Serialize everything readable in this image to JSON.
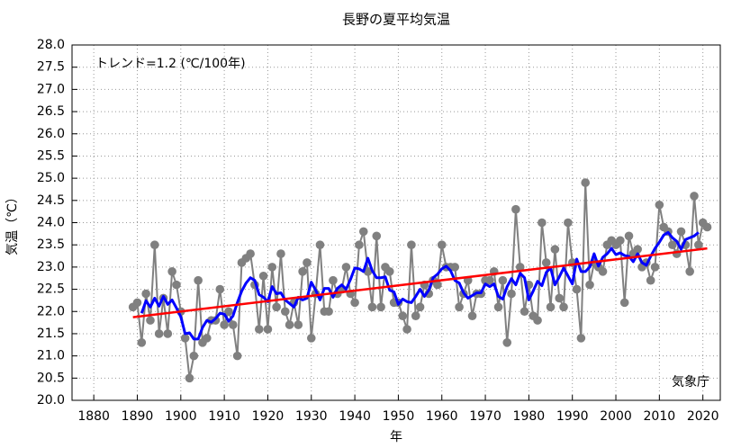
{
  "chart_data": {
    "type": "line",
    "title": "長野の夏平均気温",
    "xlabel": "年",
    "ylabel": "気温（℃）",
    "annotations": [
      "トレンド=1.2 (℃/100年)",
      "気象庁"
    ],
    "xlim": [
      1875,
      2024
    ],
    "ylim": [
      20,
      28
    ],
    "xticks": [
      1880,
      1890,
      1900,
      1910,
      1920,
      1930,
      1940,
      1950,
      1960,
      1970,
      1980,
      1990,
      2000,
      2010,
      2020
    ],
    "yticks": [
      {
        "value": 20,
        "label": "20.0"
      },
      {
        "value": 20.5,
        "label": "20.5"
      },
      {
        "value": 21,
        "label": "21.0"
      },
      {
        "value": 21.5,
        "label": "21.5"
      },
      {
        "value": 22,
        "label": "22.0"
      },
      {
        "value": 22.5,
        "label": "22.5"
      },
      {
        "value": 23,
        "label": "23.0"
      },
      {
        "value": 23.5,
        "label": "23.5"
      },
      {
        "value": 24,
        "label": "24.0"
      },
      {
        "value": 24.5,
        "label": "24.5"
      },
      {
        "value": 25,
        "label": "25.0"
      },
      {
        "value": 25.5,
        "label": "25.5"
      },
      {
        "value": 26,
        "label": "26.0"
      },
      {
        "value": 26.5,
        "label": "26.5"
      },
      {
        "value": 27,
        "label": "27.0"
      },
      {
        "value": 27.5,
        "label": "27.5"
      },
      {
        "value": 28,
        "label": "28.0"
      }
    ],
    "grid": true,
    "series": [
      {
        "color": "#808080",
        "marker": true,
        "width": 2,
        "x": [
          1889,
          1890,
          1891,
          1892,
          1893,
          1894,
          1895,
          1896,
          1897,
          1898,
          1899,
          1900,
          1901,
          1902,
          1903,
          1904,
          1905,
          1906,
          1907,
          1908,
          1909,
          1910,
          1911,
          1912,
          1913,
          1914,
          1915,
          1916,
          1917,
          1918,
          1919,
          1920,
          1921,
          1922,
          1923,
          1924,
          1925,
          1926,
          1927,
          1928,
          1929,
          1930,
          1931,
          1932,
          1933,
          1934,
          1935,
          1936,
          1937,
          1938,
          1939,
          1940,
          1941,
          1942,
          1943,
          1944,
          1945,
          1946,
          1947,
          1948,
          1949,
          1950,
          1951,
          1952,
          1953,
          1954,
          1955,
          1956,
          1957,
          1958,
          1959,
          1960,
          1961,
          1962,
          1963,
          1964,
          1965,
          1966,
          1967,
          1968,
          1969,
          1970,
          1971,
          1972,
          1973,
          1974,
          1975,
          1976,
          1977,
          1978,
          1979,
          1980,
          1981,
          1982,
          1983,
          1984,
          1985,
          1986,
          1987,
          1988,
          1989,
          1990,
          1991,
          1992,
          1993,
          1994,
          1995,
          1996,
          1997,
          1998,
          1999,
          2000,
          2001,
          2002,
          2003,
          2004,
          2005,
          2006,
          2007,
          2008,
          2009,
          2010,
          2011,
          2012,
          2013,
          2014,
          2015,
          2016,
          2017,
          2018,
          2019,
          2020,
          2021
        ],
        "values": [
          22.1,
          22.2,
          21.3,
          22.4,
          21.8,
          23.5,
          21.5,
          22.3,
          21.5,
          22.9,
          22.6,
          22.0,
          21.4,
          20.5,
          21.0,
          22.7,
          21.3,
          21.4,
          21.8,
          21.8,
          22.5,
          21.7,
          22.0,
          21.7,
          21.0,
          23.1,
          23.2,
          23.3,
          22.6,
          21.6,
          22.8,
          21.6,
          23.0,
          22.1,
          23.3,
          22.0,
          21.7,
          22.2,
          21.7,
          22.9,
          23.1,
          21.4,
          22.4,
          23.5,
          22.0,
          22.0,
          22.7,
          22.4,
          22.5,
          23.0,
          22.4,
          22.2,
          23.5,
          23.8,
          22.9,
          22.1,
          23.7,
          22.1,
          23.0,
          22.9,
          22.2,
          22.2,
          21.9,
          21.6,
          23.5,
          21.9,
          22.1,
          22.6,
          22.4,
          22.7,
          22.6,
          23.5,
          23.0,
          23.0,
          23.0,
          22.1,
          22.4,
          22.7,
          21.9,
          22.4,
          22.4,
          22.7,
          22.7,
          22.9,
          22.1,
          22.7,
          21.3,
          22.4,
          24.3,
          23.0,
          22.0,
          22.6,
          21.9,
          21.8,
          24.0,
          23.1,
          22.1,
          23.4,
          22.3,
          22.1,
          24.0,
          23.1,
          22.5,
          21.4,
          24.9,
          22.6,
          23.1,
          23.0,
          22.9,
          23.5,
          23.6,
          23.5,
          23.6,
          22.2,
          23.7,
          23.3,
          23.4,
          23.0,
          23.1,
          22.7,
          23.0,
          24.4,
          23.9,
          23.8,
          23.5,
          23.3,
          23.8,
          23.5,
          22.9,
          24.6,
          23.5,
          24.0,
          23.9
        ]
      },
      {
        "color": "#0000ff",
        "marker": false,
        "width": 3,
        "x": [
          1891,
          1892,
          1893,
          1894,
          1895,
          1896,
          1897,
          1898,
          1899,
          1900,
          1901,
          1902,
          1903,
          1904,
          1905,
          1906,
          1907,
          1908,
          1909,
          1910,
          1911,
          1912,
          1913,
          1914,
          1915,
          1916,
          1917,
          1918,
          1919,
          1920,
          1921,
          1922,
          1923,
          1924,
          1925,
          1926,
          1927,
          1928,
          1929,
          1930,
          1931,
          1932,
          1933,
          1934,
          1935,
          1936,
          1937,
          1938,
          1939,
          1940,
          1941,
          1942,
          1943,
          1944,
          1945,
          1946,
          1947,
          1948,
          1949,
          1950,
          1951,
          1952,
          1953,
          1954,
          1955,
          1956,
          1957,
          1958,
          1959,
          1960,
          1961,
          1962,
          1963,
          1964,
          1965,
          1966,
          1967,
          1968,
          1969,
          1970,
          1971,
          1972,
          1973,
          1974,
          1975,
          1976,
          1977,
          1978,
          1979,
          1980,
          1981,
          1982,
          1983,
          1984,
          1985,
          1986,
          1987,
          1988,
          1989,
          1990,
          1991,
          1992,
          1993,
          1994,
          1995,
          1996,
          1997,
          1998,
          1999,
          2000,
          2001,
          2002,
          2003,
          2004,
          2005,
          2006,
          2007,
          2008,
          2009,
          2010,
          2011,
          2012,
          2013,
          2014,
          2015,
          2016,
          2017,
          2018,
          2019
        ],
        "values": [
          21.96,
          22.24,
          22.1,
          22.3,
          22.12,
          22.34,
          22.16,
          22.26,
          22.08,
          21.88,
          21.5,
          21.52,
          21.38,
          21.38,
          21.64,
          21.8,
          21.76,
          21.84,
          21.96,
          21.94,
          21.78,
          21.9,
          22.2,
          22.46,
          22.64,
          22.76,
          22.7,
          22.38,
          22.32,
          22.22,
          22.56,
          22.4,
          22.42,
          22.26,
          22.18,
          22.1,
          22.32,
          22.26,
          22.3,
          22.66,
          22.48,
          22.26,
          22.52,
          22.52,
          22.32,
          22.52,
          22.6,
          22.5,
          22.72,
          22.98,
          22.96,
          22.9,
          23.2,
          22.92,
          22.76,
          22.76,
          22.78,
          22.48,
          22.44,
          22.16,
          22.28,
          22.22,
          22.2,
          22.34,
          22.5,
          22.34,
          22.48,
          22.76,
          22.84,
          22.96,
          23.02,
          22.92,
          22.7,
          22.64,
          22.42,
          22.3,
          22.36,
          22.42,
          22.42,
          22.62,
          22.56,
          22.62,
          22.34,
          22.28,
          22.56,
          22.74,
          22.6,
          22.86,
          22.76,
          22.26,
          22.46,
          22.68,
          22.58,
          22.88,
          22.98,
          22.6,
          22.78,
          22.98,
          22.8,
          22.62,
          23.18,
          22.9,
          22.9,
          23.0,
          23.3,
          23.02,
          23.22,
          23.3,
          23.42,
          23.28,
          23.32,
          23.26,
          23.24,
          23.12,
          23.3,
          23.1,
          23.04,
          23.24,
          23.42,
          23.56,
          23.72,
          23.78,
          23.66,
          23.58,
          23.4,
          23.62,
          23.66,
          23.7,
          23.78
        ]
      },
      {
        "color": "#ff0000",
        "marker": false,
        "width": 2.5,
        "x": [
          1889,
          2021
        ],
        "values": [
          21.87,
          23.42
        ]
      }
    ]
  }
}
